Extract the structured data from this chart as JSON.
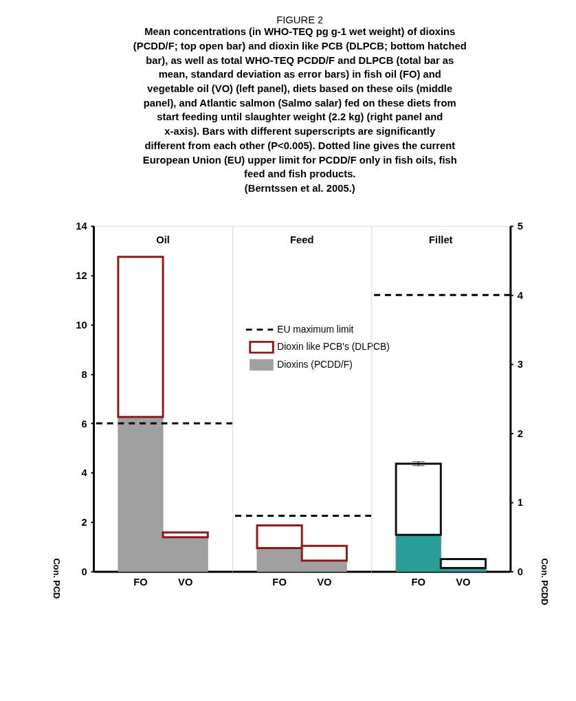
{
  "chart_data": [
    {
      "type": "bar",
      "title": "Oil",
      "stacked": true,
      "categories": [
        "FO",
        "VO"
      ],
      "ylabel": "Con. PCD",
      "annotations": [
        "FIGURE 2",
        "Mean concentrations (in WHO-TEQ pg g-1 wet weight) of dioxins (PCDD/F; top open bar) and dioxin like PCB (DLPCB; bottom hatched bar), as well as total WHO-TEQ PCDD/F and DLPCB (total bar as mean, standard deviation as error bars) in fish oil (FO) and vegetable oil (VO) (left panel), diets based on these oils (middle panel), and Atlantic salmon (Salmo salar) fed on these diets from start feeding until slaughter weight (2.2 kg) (right panel and x-axis). Bars with different superscripts are significantly different from each other (P<0.005). Dotted line gives the current European Union (EU) upper limit for PCDD/F only in fish oils, fish feed and fish products.",
        "(Berntssen et al. 2005.)"
      ],
      "ylim": [
        0,
        14
      ],
      "yticks": [
        0,
        2,
        4,
        6,
        8,
        10,
        12,
        14
      ],
      "grid": false,
      "legend": false,
      "series": [
        {
          "color": "#a0a0a0",
          "values": [
            6.26,
            1.39
          ]
        },
        {
          "color": "#8b1a1a",
          "values": [
            6.49,
            0.19
          ]
        }
      ],
      "ref_lines": [
        {
          "axis": "y",
          "value": 6,
          "color": "#000000",
          "line_style": "dashed"
        }
      ]
    },
    {
      "type": "bar",
      "title": "Feed",
      "stacked": true,
      "categories": [
        "FO",
        "VO"
      ],
      "tick_labels": "x",
      "ylim": [
        0,
        14
      ],
      "grid": false,
      "legend": "center",
      "series": [
        {
          "name": "Dioxins (PCDD/F)",
          "color": "#a0a0a0",
          "values": [
            0.95,
            0.44
          ]
        },
        {
          "name": "Dioxin like PCB's (DLPCB)",
          "color": "#8b1a1a",
          "values": [
            0.92,
            0.6
          ]
        }
      ],
      "ref_lines": [
        {
          "axis": "y",
          "value": 2.26,
          "label": "EU maximum limit",
          "color": "#000000",
          "line_style": "dashed"
        }
      ]
    },
    {
      "type": "bar",
      "title": "Fillet",
      "stacked": true,
      "categories": [
        "FO",
        "VO"
      ],
      "y2label": "Con. PCDD",
      "y2lim": [
        0,
        5
      ],
      "y2ticks": [
        0,
        1,
        2,
        3,
        4,
        5
      ],
      "grid": false,
      "legend": false,
      "series": [
        {
          "color": "#2a9d96",
          "axis": "y2",
          "values": [
            0.53,
            0.05
          ]
        },
        {
          "color": "#111111",
          "axis": "y2",
          "values": [
            1.03,
            0.13
          ],
          "errors": [
            0.03,
            null
          ]
        }
      ],
      "ref_lines": [
        {
          "axis": "y2",
          "value": 4,
          "color": "#000000",
          "line_style": "dashed"
        }
      ]
    }
  ]
}
